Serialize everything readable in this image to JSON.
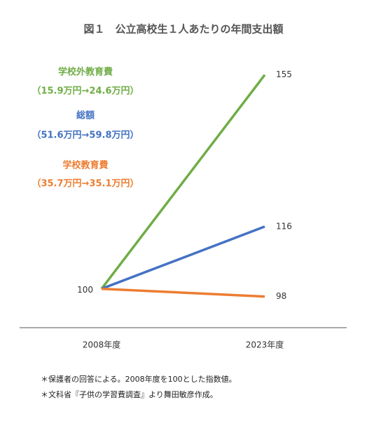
{
  "chart_data": {
    "type": "line",
    "title": "図１　公立高校生１人あたりの年間支出額",
    "categories": [
      "2008年度",
      "2023年度"
    ],
    "series": [
      {
        "name": "学校外教育費",
        "note": "（15.9万円→24.6万円）",
        "color": "#70ad47",
        "values": [
          100,
          155
        ]
      },
      {
        "name": "総額",
        "note": "（51.6万円→59.8万円）",
        "color": "#4472c4",
        "values": [
          100,
          116
        ]
      },
      {
        "name": "学校教育費",
        "note": "（35.7万円→35.1万円）",
        "color": "#ed7d31",
        "values": [
          100,
          98
        ]
      }
    ],
    "ylim": [
      90,
      160
    ],
    "footnotes": [
      "＊保護者の回答による。2008年度を100とした指数値。",
      "＊文科省『子供の学習費調査』より舞田敏彦作成。"
    ]
  }
}
